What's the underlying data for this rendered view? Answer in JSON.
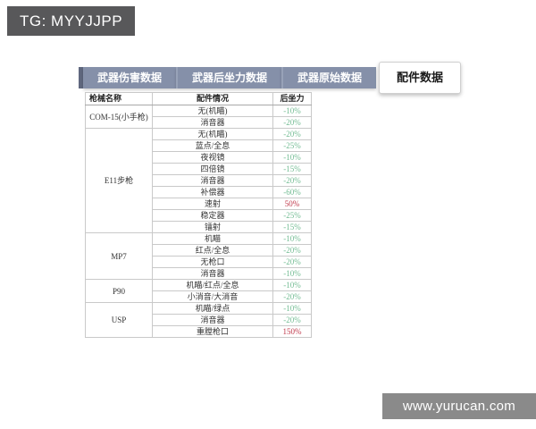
{
  "badge": {
    "text": "TG: MYYJJPP"
  },
  "watermark": {
    "text": "www.yurucan.com"
  },
  "tabs": [
    {
      "label": "武器伤害数据",
      "active": false
    },
    {
      "label": "武器后坐力数据",
      "active": false
    },
    {
      "label": "武器原始数据",
      "active": false
    },
    {
      "label": "配件数据",
      "active": true
    }
  ],
  "table": {
    "headers": [
      "枪械名称",
      "配件情况",
      "后坐力"
    ],
    "groups": [
      {
        "gun": "COM-15(小手枪)",
        "rows": [
          {
            "attachment": "无(机瞄)",
            "recoil": "-10%"
          },
          {
            "attachment": "消音器",
            "recoil": "-20%"
          }
        ]
      },
      {
        "gun": "E11步枪",
        "rows": [
          {
            "attachment": "无(机瞄)",
            "recoil": "-20%"
          },
          {
            "attachment": "蓝点/全息",
            "recoil": "-25%"
          },
          {
            "attachment": "夜视镜",
            "recoil": "-10%"
          },
          {
            "attachment": "四倍镜",
            "recoil": "-15%"
          },
          {
            "attachment": "消音器",
            "recoil": "-20%"
          },
          {
            "attachment": "补偿器",
            "recoil": "-60%"
          },
          {
            "attachment": "速射",
            "recoil": "50%"
          },
          {
            "attachment": "稳定器",
            "recoil": "-25%"
          },
          {
            "attachment": "镭射",
            "recoil": "-15%"
          }
        ]
      },
      {
        "gun": "MP7",
        "rows": [
          {
            "attachment": "机瞄",
            "recoil": "-10%"
          },
          {
            "attachment": "红点/全息",
            "recoil": "-20%"
          },
          {
            "attachment": "无枪口",
            "recoil": "-20%"
          },
          {
            "attachment": "消音器",
            "recoil": "-10%"
          }
        ]
      },
      {
        "gun": "P90",
        "rows": [
          {
            "attachment": "机瞄/红点/全息",
            "recoil": "-10%"
          },
          {
            "attachment": "小消音/大消音",
            "recoil": "-20%"
          }
        ]
      },
      {
        "gun": "USP",
        "rows": [
          {
            "attachment": "机瞄/绿点",
            "recoil": "-10%"
          },
          {
            "attachment": "消音器",
            "recoil": "-20%"
          },
          {
            "attachment": "重膛枪口",
            "recoil": "150%"
          }
        ]
      }
    ]
  },
  "colors": {
    "badge_bg": "#58585a",
    "watermark_bg": "#8a8a8a",
    "tab_bg": "#8590a9",
    "tab_active_bg": "#ffffff",
    "recoil_decrease": "#74bd94",
    "recoil_increase": "#c0394b"
  }
}
